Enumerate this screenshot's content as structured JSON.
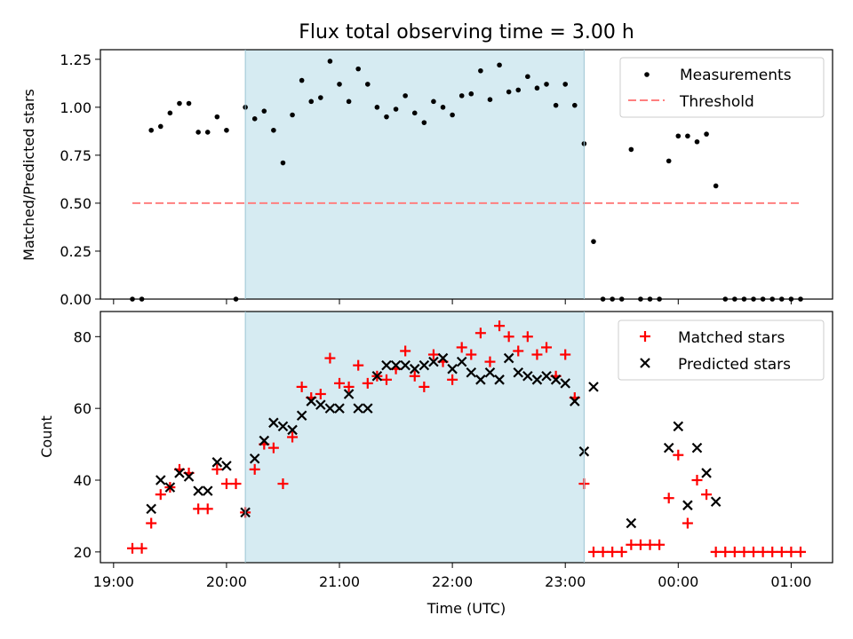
{
  "chart_data": {
    "type": "scatter",
    "title": "Flux total observing time = 3.00 h",
    "xlabel": "Time (UTC)",
    "x_unit": "hours since 19:00 UTC",
    "xlim": [
      "18:53",
      "01:22"
    ],
    "xticks": [
      "19:00",
      "20:00",
      "21:00",
      "22:00",
      "23:00",
      "00:00",
      "01:00"
    ],
    "shaded_interval": [
      "20:10",
      "23:10"
    ],
    "shade_color": "#add8e6",
    "panels": [
      {
        "ylabel": "Matched/Predicted stars",
        "ylim": [
          0,
          1.3
        ],
        "yticks": [
          "0.00",
          "0.25",
          "0.50",
          "0.75",
          "1.00",
          "1.25"
        ],
        "legend_position": "top-right",
        "threshold": {
          "name": "Threshold",
          "value": 0.5,
          "x_range": [
            "19:10",
            "01:05"
          ],
          "color": "#ff7f7f"
        },
        "series": [
          {
            "name": "Measurements",
            "color": "#000000",
            "marker": "dot",
            "points": [
              [
                "19:10",
                0
              ],
              [
                "19:15",
                0
              ],
              [
                "19:20",
                0.88
              ],
              [
                "19:25",
                0.9
              ],
              [
                "19:30",
                0.97
              ],
              [
                "19:35",
                1.02
              ],
              [
                "19:40",
                1.02
              ],
              [
                "19:45",
                0.87
              ],
              [
                "19:50",
                0.87
              ],
              [
                "19:55",
                0.95
              ],
              [
                "20:00",
                0.88
              ],
              [
                "20:05",
                0
              ],
              [
                "20:10",
                1.0
              ],
              [
                "20:15",
                0.94
              ],
              [
                "20:20",
                0.98
              ],
              [
                "20:25",
                0.88
              ],
              [
                "20:30",
                0.71
              ],
              [
                "20:35",
                0.96
              ],
              [
                "20:40",
                1.14
              ],
              [
                "20:45",
                1.03
              ],
              [
                "20:50",
                1.05
              ],
              [
                "20:55",
                1.24
              ],
              [
                "21:00",
                1.12
              ],
              [
                "21:05",
                1.03
              ],
              [
                "21:10",
                1.2
              ],
              [
                "21:15",
                1.12
              ],
              [
                "21:20",
                1.0
              ],
              [
                "21:25",
                0.95
              ],
              [
                "21:30",
                0.99
              ],
              [
                "21:35",
                1.06
              ],
              [
                "21:40",
                0.97
              ],
              [
                "21:45",
                0.92
              ],
              [
                "21:50",
                1.03
              ],
              [
                "21:55",
                1.0
              ],
              [
                "22:00",
                0.96
              ],
              [
                "22:05",
                1.06
              ],
              [
                "22:10",
                1.07
              ],
              [
                "22:15",
                1.19
              ],
              [
                "22:20",
                1.04
              ],
              [
                "22:25",
                1.22
              ],
              [
                "22:30",
                1.08
              ],
              [
                "22:35",
                1.09
              ],
              [
                "22:40",
                1.16
              ],
              [
                "22:45",
                1.1
              ],
              [
                "22:50",
                1.12
              ],
              [
                "22:55",
                1.01
              ],
              [
                "23:00",
                1.12
              ],
              [
                "23:05",
                1.01
              ],
              [
                "23:10",
                0.81
              ],
              [
                "23:15",
                0.3
              ],
              [
                "23:20",
                0
              ],
              [
                "23:25",
                0
              ],
              [
                "23:30",
                0
              ],
              [
                "23:35",
                0.78
              ],
              [
                "23:40",
                0
              ],
              [
                "23:45",
                0
              ],
              [
                "23:50",
                0
              ],
              [
                "23:55",
                0.72
              ],
              [
                "00:00",
                0.85
              ],
              [
                "00:05",
                0.85
              ],
              [
                "00:10",
                0.82
              ],
              [
                "00:15",
                0.86
              ],
              [
                "00:20",
                0.59
              ],
              [
                "00:25",
                0
              ],
              [
                "00:30",
                0
              ],
              [
                "00:35",
                0
              ],
              [
                "00:40",
                0
              ],
              [
                "00:45",
                0
              ],
              [
                "00:50",
                0
              ],
              [
                "00:55",
                0
              ],
              [
                "01:00",
                0
              ],
              [
                "01:05",
                0
              ]
            ]
          }
        ]
      },
      {
        "ylabel": "Count",
        "ylim": [
          17,
          87
        ],
        "yticks": [
          "20",
          "40",
          "60",
          "80"
        ],
        "legend_position": "top-right",
        "series": [
          {
            "name": "Matched stars",
            "color": "#ff0000",
            "marker": "plus",
            "points": [
              [
                "19:10",
                21
              ],
              [
                "19:15",
                21
              ],
              [
                "19:20",
                28
              ],
              [
                "19:25",
                36
              ],
              [
                "19:30",
                38
              ],
              [
                "19:35",
                43
              ],
              [
                "19:40",
                42
              ],
              [
                "19:45",
                32
              ],
              [
                "19:50",
                32
              ],
              [
                "19:55",
                43
              ],
              [
                "20:00",
                39
              ],
              [
                "20:05",
                39
              ],
              [
                "20:10",
                31
              ],
              [
                "20:15",
                43
              ],
              [
                "20:20",
                50
              ],
              [
                "20:25",
                49
              ],
              [
                "20:30",
                39
              ],
              [
                "20:35",
                52
              ],
              [
                "20:40",
                66
              ],
              [
                "20:45",
                63
              ],
              [
                "20:50",
                64
              ],
              [
                "20:55",
                74
              ],
              [
                "21:00",
                67
              ],
              [
                "21:05",
                66
              ],
              [
                "21:10",
                72
              ],
              [
                "21:15",
                67
              ],
              [
                "21:20",
                69
              ],
              [
                "21:25",
                68
              ],
              [
                "21:30",
                71
              ],
              [
                "21:35",
                76
              ],
              [
                "21:40",
                69
              ],
              [
                "21:45",
                66
              ],
              [
                "21:50",
                75
              ],
              [
                "21:55",
                73
              ],
              [
                "22:00",
                68
              ],
              [
                "22:05",
                77
              ],
              [
                "22:10",
                75
              ],
              [
                "22:15",
                81
              ],
              [
                "22:20",
                73
              ],
              [
                "22:25",
                83
              ],
              [
                "22:30",
                80
              ],
              [
                "22:35",
                76
              ],
              [
                "22:40",
                80
              ],
              [
                "22:45",
                75
              ],
              [
                "22:50",
                77
              ],
              [
                "22:55",
                69
              ],
              [
                "23:00",
                75
              ],
              [
                "23:05",
                63
              ],
              [
                "23:10",
                39
              ],
              [
                "23:15",
                20
              ],
              [
                "23:20",
                20
              ],
              [
                "23:25",
                20
              ],
              [
                "23:30",
                20
              ],
              [
                "23:35",
                22
              ],
              [
                "23:40",
                22
              ],
              [
                "23:45",
                22
              ],
              [
                "23:50",
                22
              ],
              [
                "23:55",
                35
              ],
              [
                "00:00",
                47
              ],
              [
                "00:05",
                28
              ],
              [
                "00:10",
                40
              ],
              [
                "00:15",
                36
              ],
              [
                "00:20",
                20
              ],
              [
                "00:25",
                20
              ],
              [
                "00:30",
                20
              ],
              [
                "00:35",
                20
              ],
              [
                "00:40",
                20
              ],
              [
                "00:45",
                20
              ],
              [
                "00:50",
                20
              ],
              [
                "00:55",
                20
              ],
              [
                "01:00",
                20
              ],
              [
                "01:05",
                20
              ]
            ]
          },
          {
            "name": "Predicted stars",
            "color": "#000000",
            "marker": "x",
            "points": [
              [
                "19:20",
                32
              ],
              [
                "19:25",
                40
              ],
              [
                "19:30",
                38
              ],
              [
                "19:35",
                42
              ],
              [
                "19:40",
                41
              ],
              [
                "19:45",
                37
              ],
              [
                "19:50",
                37
              ],
              [
                "19:55",
                45
              ],
              [
                "20:00",
                44
              ],
              [
                "20:10",
                31
              ],
              [
                "20:15",
                46
              ],
              [
                "20:20",
                51
              ],
              [
                "20:25",
                56
              ],
              [
                "20:30",
                55
              ],
              [
                "20:35",
                54
              ],
              [
                "20:40",
                58
              ],
              [
                "20:45",
                62
              ],
              [
                "20:50",
                61
              ],
              [
                "20:55",
                60
              ],
              [
                "21:00",
                60
              ],
              [
                "21:05",
                64
              ],
              [
                "21:10",
                60
              ],
              [
                "21:15",
                60
              ],
              [
                "21:20",
                69
              ],
              [
                "21:25",
                72
              ],
              [
                "21:30",
                72
              ],
              [
                "21:35",
                72
              ],
              [
                "21:40",
                71
              ],
              [
                "21:45",
                72
              ],
              [
                "21:50",
                73
              ],
              [
                "21:55",
                74
              ],
              [
                "22:00",
                71
              ],
              [
                "22:05",
                73
              ],
              [
                "22:10",
                70
              ],
              [
                "22:15",
                68
              ],
              [
                "22:20",
                70
              ],
              [
                "22:25",
                68
              ],
              [
                "22:30",
                74
              ],
              [
                "22:35",
                70
              ],
              [
                "22:40",
                69
              ],
              [
                "22:45",
                68
              ],
              [
                "22:50",
                69
              ],
              [
                "22:55",
                68
              ],
              [
                "23:00",
                67
              ],
              [
                "23:05",
                62
              ],
              [
                "23:10",
                48
              ],
              [
                "23:15",
                66
              ],
              [
                "23:35",
                28
              ],
              [
                "23:55",
                49
              ],
              [
                "00:00",
                55
              ],
              [
                "00:05",
                33
              ],
              [
                "00:10",
                49
              ],
              [
                "00:15",
                42
              ],
              [
                "00:20",
                34
              ]
            ]
          }
        ]
      }
    ]
  }
}
